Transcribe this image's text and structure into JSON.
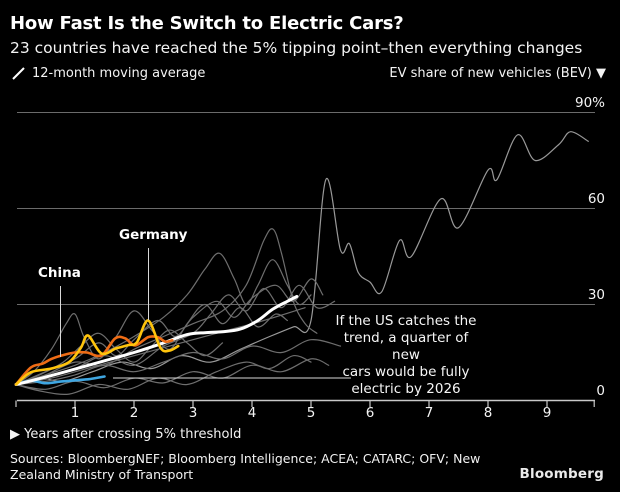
{
  "header": {
    "title": "How Fast Is the Switch to Electric Cars?",
    "subtitle": "23 countries have reached the 5% tipping point–then everything changes"
  },
  "legend": {
    "moving_average_label": "12-month moving average",
    "unit_label": "EV share of new vehicles (BEV) ▼"
  },
  "annotations": {
    "china_label": "China",
    "germany_label": "Germany",
    "us_note_lines": [
      "If the US catches the",
      "trend, a quarter of new",
      "cars would be fully",
      "electric by 2026"
    ]
  },
  "footer": {
    "axis_label": "▶ Years after crossing 5% threshold",
    "sources_line1": "Sources: BloombergNEF; Bloomberg Intelligence; ACEA; CATARC; OFV; New",
    "sources_line2": "Zealand Ministry of Transport",
    "logo": "Bloomberg"
  },
  "colors": {
    "background": "#000000",
    "grid": "#6b6b6b",
    "axis": "#c9c9c9",
    "china": "#ef6c15",
    "germany": "#ffc40c",
    "us": "#3fa6e1",
    "trend": "#ffffff",
    "other_country": "#6e6e6e",
    "leader_country": "#999999"
  },
  "chart_data": {
    "type": "line",
    "title": "How Fast Is the Switch to Electric Cars?",
    "subtitle": "23 countries have reached the 5% tipping point–then everything changes",
    "xlabel": "Years after crossing 5% threshold",
    "ylabel": "EV share of new vehicles (BEV), %",
    "xlim": [
      0,
      9.8
    ],
    "ylim": [
      0,
      90
    ],
    "grid": "horizontal",
    "x_ticks": [
      1,
      2,
      3,
      4,
      5,
      6,
      7,
      8,
      9
    ],
    "y_ticks": [
      {
        "value": 90,
        "label": "90%"
      },
      {
        "value": 60,
        "label": "60"
      },
      {
        "value": 30,
        "label": "30"
      },
      {
        "value": 0,
        "label": "0"
      }
    ],
    "series": [
      {
        "id": "g1-leader",
        "label": "Unlabeled country (leader)",
        "color": "#999999",
        "width": 1.2,
        "points": [
          [
            0,
            5
          ],
          [
            0.4,
            7
          ],
          [
            0.8,
            6
          ],
          [
            1.3,
            9
          ],
          [
            1.8,
            12
          ],
          [
            2.3,
            10
          ],
          [
            2.8,
            14
          ],
          [
            3.3,
            12
          ],
          [
            3.8,
            16
          ],
          [
            4.3,
            20
          ],
          [
            4.7,
            23
          ],
          [
            5.0,
            25
          ],
          [
            5.25,
            69
          ],
          [
            5.5,
            47
          ],
          [
            5.65,
            49
          ],
          [
            5.8,
            40
          ],
          [
            6.0,
            37
          ],
          [
            6.2,
            34
          ],
          [
            6.5,
            50
          ],
          [
            6.7,
            45
          ],
          [
            7.2,
            63
          ],
          [
            7.5,
            54
          ],
          [
            8.0,
            72
          ],
          [
            8.15,
            69
          ],
          [
            8.5,
            83
          ],
          [
            8.8,
            75
          ],
          [
            9.2,
            80
          ],
          [
            9.4,
            84
          ],
          [
            9.7,
            81
          ]
        ]
      },
      {
        "id": "g2",
        "label": "Unlabeled country",
        "color": "#6e6e6e",
        "width": 1.2,
        "points": [
          [
            0,
            5
          ],
          [
            0.5,
            8
          ],
          [
            1.0,
            12
          ],
          [
            1.5,
            11
          ],
          [
            2.0,
            16
          ],
          [
            2.5,
            20
          ],
          [
            3.0,
            24
          ],
          [
            3.5,
            28
          ],
          [
            3.9,
            36
          ],
          [
            4.2,
            50
          ],
          [
            4.36,
            53.5
          ],
          [
            4.5,
            46
          ],
          [
            4.7,
            31
          ],
          [
            4.9,
            24
          ],
          [
            5.1,
            21
          ]
        ]
      },
      {
        "id": "g3",
        "label": "Unlabeled country",
        "color": "#6e6e6e",
        "width": 1.2,
        "points": [
          [
            0,
            5
          ],
          [
            0.3,
            9
          ],
          [
            0.6,
            16
          ],
          [
            0.85,
            24
          ],
          [
            1.0,
            27
          ],
          [
            1.15,
            20
          ],
          [
            1.4,
            13
          ],
          [
            1.7,
            20
          ],
          [
            2.0,
            28
          ],
          [
            2.3,
            22
          ],
          [
            2.6,
            16
          ],
          [
            2.9,
            24
          ],
          [
            3.2,
            30
          ],
          [
            3.5,
            24
          ],
          [
            3.8,
            29
          ],
          [
            4.1,
            23
          ],
          [
            4.4,
            27
          ],
          [
            4.6,
            25
          ]
        ]
      },
      {
        "id": "g4",
        "label": "Unlabeled country",
        "color": "#6e6e6e",
        "width": 1.2,
        "points": [
          [
            0,
            5
          ],
          [
            0.5,
            7
          ],
          [
            1.0,
            10
          ],
          [
            1.5,
            14
          ],
          [
            2.0,
            11
          ],
          [
            2.5,
            17
          ],
          [
            3.0,
            21
          ],
          [
            3.3,
            27
          ],
          [
            3.6,
            33
          ],
          [
            3.9,
            28
          ],
          [
            4.2,
            35
          ],
          [
            4.5,
            29
          ],
          [
            4.8,
            36
          ],
          [
            5.1,
            29
          ],
          [
            5.4,
            31
          ]
        ]
      },
      {
        "id": "g5",
        "label": "Unlabeled country",
        "color": "#6e6e6e",
        "width": 1.2,
        "points": [
          [
            0,
            5
          ],
          [
            0.5,
            3.5
          ],
          [
            1.0,
            6
          ],
          [
            1.5,
            4
          ],
          [
            2.0,
            7
          ],
          [
            2.5,
            5.5
          ],
          [
            3.0,
            9
          ],
          [
            3.5,
            7
          ],
          [
            4.0,
            11
          ],
          [
            4.5,
            9
          ],
          [
            5.0,
            13
          ],
          [
            5.3,
            11
          ]
        ]
      },
      {
        "id": "g6",
        "label": "Unlabeled country",
        "color": "#6e6e6e",
        "width": 1.2,
        "points": [
          [
            0,
            5
          ],
          [
            0.4,
            3
          ],
          [
            0.9,
            2
          ],
          [
            1.4,
            5
          ],
          [
            1.9,
            3.5
          ],
          [
            2.4,
            7
          ],
          [
            2.9,
            5
          ],
          [
            3.4,
            9
          ],
          [
            3.9,
            12
          ],
          [
            4.3,
            10
          ],
          [
            4.7,
            14
          ],
          [
            5.0,
            12
          ]
        ]
      },
      {
        "id": "g7",
        "label": "Unlabeled country",
        "color": "#6e6e6e",
        "width": 1.2,
        "points": [
          [
            0,
            5
          ],
          [
            0.5,
            9
          ],
          [
            1.0,
            13
          ],
          [
            1.4,
            18
          ],
          [
            1.7,
            14
          ],
          [
            2.0,
            19
          ],
          [
            2.4,
            25
          ],
          [
            2.7,
            20
          ],
          [
            3.0,
            26
          ],
          [
            3.4,
            31
          ],
          [
            3.7,
            26
          ],
          [
            4.0,
            32
          ],
          [
            4.4,
            36
          ],
          [
            4.7,
            31
          ],
          [
            5.0,
            38
          ],
          [
            5.2,
            33
          ]
        ]
      },
      {
        "id": "g8",
        "label": "Unlabeled country",
        "color": "#6e6e6e",
        "width": 1.2,
        "points": [
          [
            0,
            5
          ],
          [
            0.4,
            8
          ],
          [
            0.8,
            12
          ],
          [
            1.1,
            17
          ],
          [
            1.4,
            21
          ],
          [
            1.7,
            16
          ],
          [
            2.0,
            12
          ],
          [
            2.3,
            17
          ],
          [
            2.6,
            22
          ],
          [
            2.9,
            18
          ],
          [
            3.2,
            14
          ],
          [
            3.5,
            18
          ]
        ]
      },
      {
        "id": "g9",
        "label": "Unlabeled country",
        "color": "#6e6e6e",
        "width": 1.2,
        "points": [
          [
            0,
            5
          ],
          [
            0.6,
            7
          ],
          [
            1.2,
            10
          ],
          [
            1.8,
            13
          ],
          [
            2.4,
            16
          ],
          [
            3.0,
            19
          ],
          [
            3.6,
            22
          ],
          [
            4.2,
            25
          ],
          [
            4.9,
            29
          ]
        ]
      },
      {
        "id": "g10",
        "label": "Unlabeled country",
        "color": "#6e6e6e",
        "width": 1.2,
        "points": [
          [
            0,
            5
          ],
          [
            0.5,
            6
          ],
          [
            1.0,
            8
          ],
          [
            1.5,
            11
          ],
          [
            2.0,
            9
          ],
          [
            2.5,
            12
          ],
          [
            3.0,
            15
          ],
          [
            3.5,
            13
          ],
          [
            4.0,
            17
          ],
          [
            4.5,
            15
          ],
          [
            5.0,
            19
          ],
          [
            5.5,
            17
          ]
        ]
      },
      {
        "id": "g11",
        "label": "Unlabeled country",
        "color": "#6e6e6e",
        "width": 1.2,
        "points": [
          [
            0,
            5
          ],
          [
            0.5,
            8
          ],
          [
            1.0,
            11
          ],
          [
            1.5,
            15
          ],
          [
            2.0,
            20
          ],
          [
            2.5,
            26
          ],
          [
            2.9,
            33
          ],
          [
            3.2,
            41
          ],
          [
            3.45,
            46
          ],
          [
            3.7,
            38
          ],
          [
            3.9,
            30
          ],
          [
            4.1,
            36
          ],
          [
            4.35,
            44
          ],
          [
            4.6,
            36
          ],
          [
            4.8,
            30
          ],
          [
            5.0,
            33
          ]
        ]
      },
      {
        "id": "us",
        "label": "US",
        "color": "#3fa6e1",
        "width": 2.6,
        "points": [
          [
            0,
            5
          ],
          [
            0.25,
            6.2
          ],
          [
            0.5,
            5.4
          ],
          [
            0.75,
            5.9
          ],
          [
            1.0,
            6.3
          ],
          [
            1.25,
            6.7
          ],
          [
            1.5,
            7.5
          ]
        ]
      },
      {
        "id": "trend",
        "label": "12-month moving average trend",
        "color": "#ffffff",
        "width": 3,
        "points": [
          [
            0,
            5
          ],
          [
            0.5,
            7.3
          ],
          [
            1.0,
            9.8
          ],
          [
            1.5,
            12.4
          ],
          [
            2.0,
            15
          ],
          [
            2.5,
            18
          ],
          [
            2.9,
            20.6
          ],
          [
            3.2,
            21.2
          ],
          [
            3.5,
            21.5
          ],
          [
            3.8,
            22.3
          ],
          [
            4.1,
            25
          ],
          [
            4.35,
            28.5
          ],
          [
            4.6,
            31
          ],
          [
            4.76,
            32.5
          ]
        ]
      },
      {
        "id": "china",
        "label": "China",
        "color": "#ef6c15",
        "width": 2.6,
        "points": [
          [
            0,
            5
          ],
          [
            0.25,
            10.3
          ],
          [
            0.45,
            11.5
          ],
          [
            0.6,
            13
          ],
          [
            0.8,
            14.2
          ],
          [
            1.0,
            15
          ],
          [
            1.2,
            15
          ],
          [
            1.45,
            14.1
          ],
          [
            1.68,
            19.4
          ],
          [
            1.85,
            19.4
          ],
          [
            2.02,
            17.2
          ],
          [
            2.24,
            19.8
          ],
          [
            2.4,
            19.8
          ],
          [
            2.53,
            18.4
          ],
          [
            2.65,
            18.8
          ]
        ]
      },
      {
        "id": "germany",
        "label": "Germany",
        "color": "#ffc40c",
        "width": 2.6,
        "points": [
          [
            0,
            5
          ],
          [
            0.25,
            8.8
          ],
          [
            0.6,
            10
          ],
          [
            0.9,
            12
          ],
          [
            1.1,
            16.5
          ],
          [
            1.22,
            20.3
          ],
          [
            1.45,
            14.7
          ],
          [
            1.7,
            16.3
          ],
          [
            1.9,
            17.3
          ],
          [
            2.05,
            18.2
          ],
          [
            2.24,
            25
          ],
          [
            2.45,
            16.4
          ],
          [
            2.6,
            15.6
          ],
          [
            2.75,
            17
          ]
        ]
      }
    ]
  }
}
